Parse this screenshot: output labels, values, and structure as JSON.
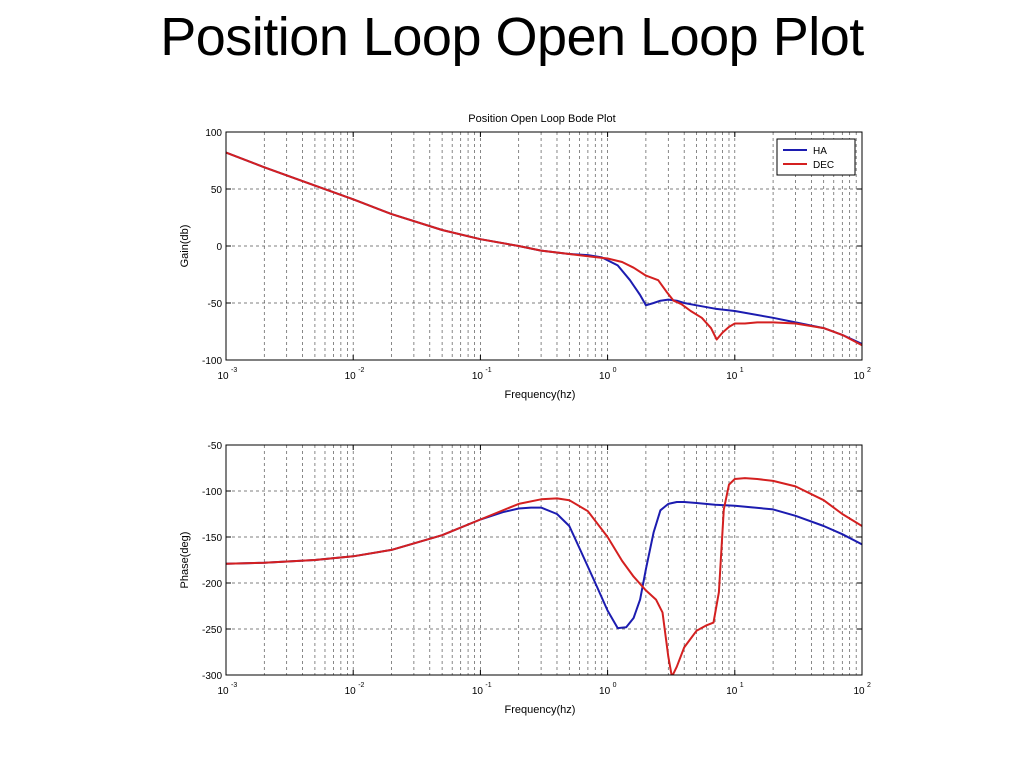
{
  "slide": {
    "title": "Position Loop Open Loop Plot"
  },
  "colors": {
    "HA": "#1c1cb0",
    "DEC": "#d42020",
    "grid": "#555555"
  },
  "chart_data": [
    {
      "type": "line",
      "title": "Position Open Loop Bode Plot",
      "xlabel": "Frequency(hz)",
      "ylabel": "Gain(db)",
      "xscale": "log",
      "xlim": [
        0.001,
        100
      ],
      "ylim": [
        -100,
        100
      ],
      "xticks": [
        {
          "base": "10",
          "exp": "-3",
          "value": 0.001
        },
        {
          "base": "10",
          "exp": "-2",
          "value": 0.01
        },
        {
          "base": "10",
          "exp": "-1",
          "value": 0.1
        },
        {
          "base": "10",
          "exp": "0",
          "value": 1
        },
        {
          "base": "10",
          "exp": "1",
          "value": 10
        },
        {
          "base": "10",
          "exp": "2",
          "value": 100
        }
      ],
      "yticks": [
        "100",
        "50",
        "0",
        "-50",
        "-100"
      ],
      "ytick_values": [
        100,
        50,
        0,
        -50,
        -100
      ],
      "grid": true,
      "legend": {
        "position": "top-right",
        "entries": [
          "HA",
          "DEC"
        ]
      },
      "series": [
        {
          "name": "HA",
          "x": [
            0.001,
            0.002,
            0.005,
            0.01,
            0.02,
            0.05,
            0.1,
            0.2,
            0.3,
            0.5,
            0.7,
            0.9,
            1.2,
            1.5,
            1.8,
            2.0,
            2.3,
            2.6,
            3.0,
            3.5,
            4,
            5,
            7,
            10,
            20,
            30,
            50,
            70,
            100
          ],
          "y": [
            82,
            69,
            53,
            41,
            28,
            14,
            6,
            0,
            -4,
            -7,
            -8,
            -10,
            -17,
            -30,
            -43,
            -52,
            -50,
            -48,
            -47,
            -48,
            -50,
            -52,
            -55,
            -57,
            -63,
            -67,
            -72,
            -78,
            -86
          ]
        },
        {
          "name": "DEC",
          "x": [
            0.001,
            0.002,
            0.005,
            0.01,
            0.02,
            0.05,
            0.1,
            0.2,
            0.3,
            0.5,
            0.7,
            1.0,
            1.3,
            1.6,
            2.0,
            2.5,
            2.9,
            3.3,
            3.8,
            4.5,
            5.5,
            6.5,
            7.2,
            8,
            9,
            10,
            12,
            15,
            20,
            30,
            50,
            70,
            100
          ],
          "y": [
            82,
            69,
            53,
            41,
            28,
            14,
            6,
            0,
            -4,
            -7,
            -9,
            -11,
            -14,
            -19,
            -26,
            -30,
            -40,
            -48,
            -51,
            -57,
            -63,
            -72,
            -82,
            -76,
            -71,
            -68,
            -68,
            -67,
            -67,
            -68,
            -72,
            -78,
            -87
          ]
        }
      ]
    },
    {
      "type": "line",
      "title": "",
      "xlabel": "Frequency(hz)",
      "ylabel": "Phase(deg)",
      "xscale": "log",
      "xlim": [
        0.001,
        100
      ],
      "ylim": [
        -300,
        -50
      ],
      "xticks": [
        {
          "base": "10",
          "exp": "-3",
          "value": 0.001
        },
        {
          "base": "10",
          "exp": "-2",
          "value": 0.01
        },
        {
          "base": "10",
          "exp": "-1",
          "value": 0.1
        },
        {
          "base": "10",
          "exp": "0",
          "value": 1
        },
        {
          "base": "10",
          "exp": "1",
          "value": 10
        },
        {
          "base": "10",
          "exp": "2",
          "value": 100
        }
      ],
      "yticks": [
        "-50",
        "-100",
        "-150",
        "-200",
        "-250",
        "-300"
      ],
      "ytick_values": [
        -50,
        -100,
        -150,
        -200,
        -250,
        -300
      ],
      "grid": true,
      "series": [
        {
          "name": "HA",
          "x": [
            0.001,
            0.002,
            0.005,
            0.01,
            0.02,
            0.05,
            0.1,
            0.15,
            0.2,
            0.25,
            0.3,
            0.4,
            0.5,
            0.6,
            0.8,
            1.0,
            1.2,
            1.4,
            1.6,
            1.8,
            2.0,
            2.3,
            2.6,
            3.0,
            3.5,
            4,
            5,
            7,
            10,
            20,
            30,
            50,
            70,
            100
          ],
          "y": [
            -179,
            -178,
            -175,
            -171,
            -164,
            -148,
            -131,
            -123,
            -119,
            -118,
            -118,
            -125,
            -138,
            -162,
            -200,
            -230,
            -249,
            -248,
            -238,
            -218,
            -185,
            -145,
            -121,
            -114,
            -112,
            -112,
            -113,
            -115,
            -116,
            -120,
            -127,
            -138,
            -147,
            -158
          ]
        },
        {
          "name": "DEC",
          "x": [
            0.001,
            0.002,
            0.005,
            0.01,
            0.02,
            0.05,
            0.1,
            0.2,
            0.3,
            0.4,
            0.5,
            0.7,
            1.0,
            1.3,
            1.6,
            2.0,
            2.4,
            2.7,
            3.0,
            3.2,
            3.5,
            4.0,
            5.0,
            6.0,
            6.8,
            7.5,
            8.2,
            9,
            10,
            12,
            15,
            20,
            30,
            50,
            70,
            100
          ],
          "y": [
            -179,
            -178,
            -175,
            -171,
            -164,
            -148,
            -131,
            -114,
            -109,
            -108,
            -110,
            -122,
            -150,
            -176,
            -193,
            -208,
            -218,
            -232,
            -280,
            -302,
            -291,
            -270,
            -252,
            -246,
            -243,
            -210,
            -120,
            -93,
            -87,
            -86,
            -87,
            -89,
            -95,
            -110,
            -125,
            -138
          ]
        }
      ]
    }
  ]
}
